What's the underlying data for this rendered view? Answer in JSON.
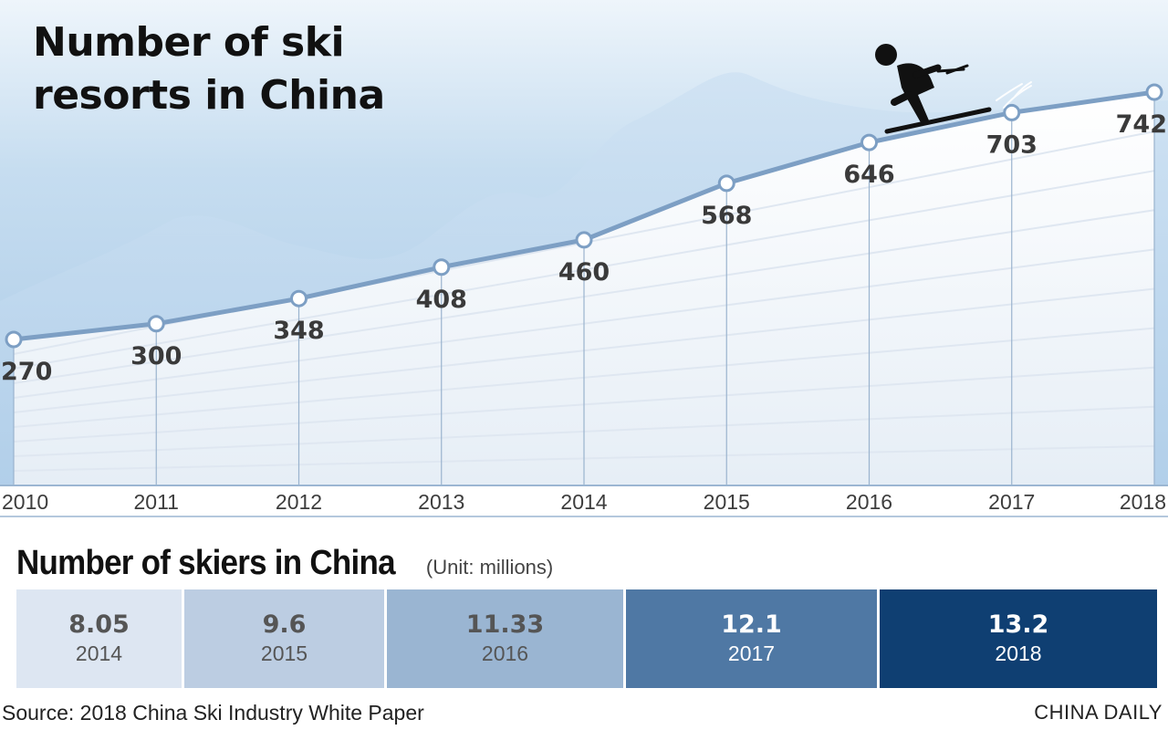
{
  "title_line1": "Number of ski",
  "title_line2": "resorts in China",
  "chart_data": [
    {
      "type": "line",
      "title": "Number of ski resorts in China",
      "x": [
        "2010",
        "2011",
        "2012",
        "2013",
        "2014",
        "2015",
        "2016",
        "2017",
        "2018"
      ],
      "values": [
        270,
        300,
        348,
        408,
        460,
        568,
        646,
        703,
        742
      ]
    },
    {
      "type": "table",
      "title": "Number of skiers in China",
      "unit": "(Unit: millions)",
      "categories": [
        "2014",
        "2015",
        "2016",
        "2017",
        "2018"
      ],
      "values": [
        8.05,
        9.6,
        11.33,
        12.1,
        13.2
      ],
      "labels": [
        "8.05",
        "9.6",
        "11.33",
        "12.1",
        "13.2"
      ]
    }
  ],
  "colors": {
    "sky_top": "#bcd8ee",
    "line": "#7d9fc4",
    "cells": [
      "#dde6f2",
      "#bccde2",
      "#9ab5d2",
      "#4f78a4",
      "#0f3f72"
    ],
    "cell_text": [
      "#555555",
      "#555555",
      "#555555",
      "#ffffff",
      "#ffffff"
    ]
  },
  "source": "Source: 2018 China Ski Industry White Paper",
  "brand": "CHINA DAILY"
}
